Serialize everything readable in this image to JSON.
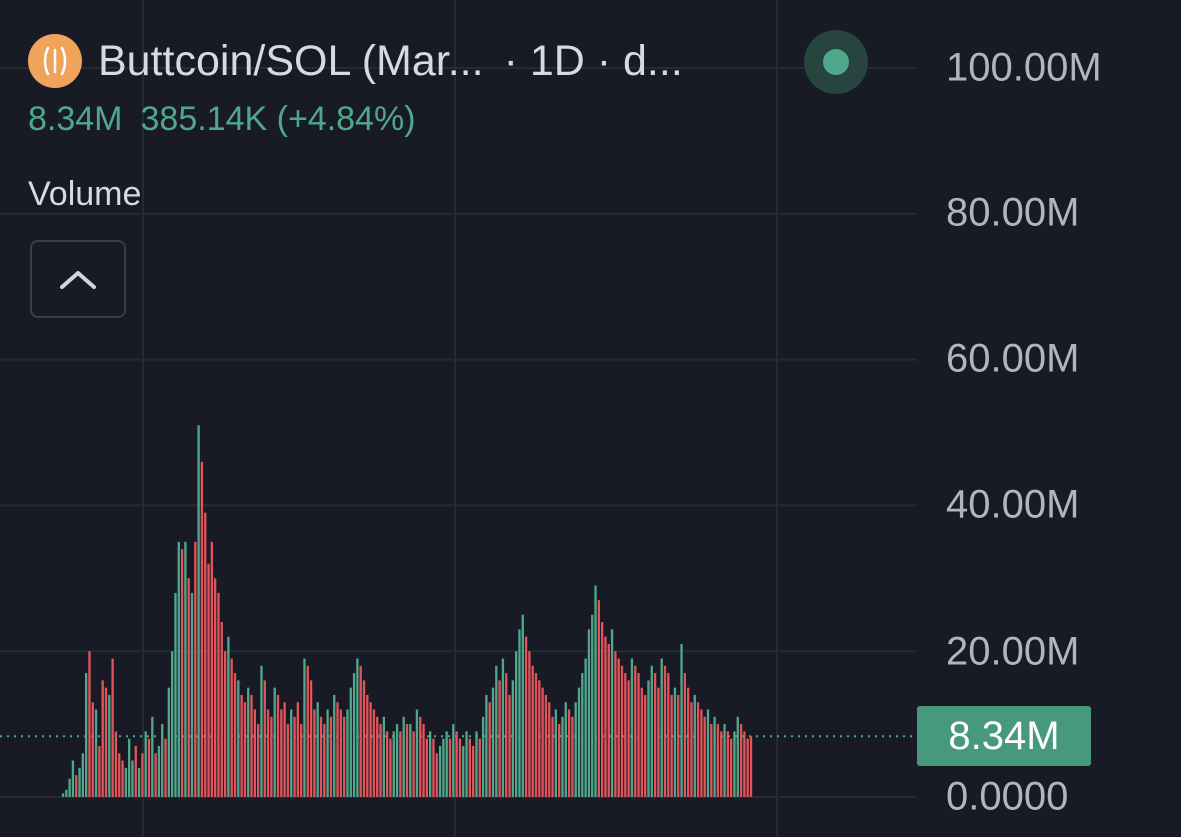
{
  "header": {
    "pair": "Buttcoin/SOL (Mar...",
    "interval": "· 1D · d...",
    "logo_icon": "buttcoin-logo-icon",
    "status_color": "#4fa88b",
    "volume_value": "8.34M",
    "change_value": "385.14K (+4.84%)",
    "indicator_label": "Volume"
  },
  "axis": {
    "labels": [
      "100.00M",
      "80.00M",
      "60.00M",
      "40.00M",
      "20.00M",
      "0.0000"
    ],
    "current_badge": "8.34M"
  },
  "colors": {
    "up": "#4fa88b",
    "down": "#e2545a",
    "grid": "#272a35",
    "badge": "#46997d"
  },
  "chart_data": {
    "type": "bar",
    "title": "Volume",
    "ylim": [
      0,
      100000000
    ],
    "current_value": 8340000,
    "grid": true,
    "bars": [
      [
        0.5,
        1
      ],
      [
        1,
        1
      ],
      [
        2.5,
        1
      ],
      [
        5,
        1
      ],
      [
        3,
        0
      ],
      [
        4,
        1
      ],
      [
        6,
        1
      ],
      [
        17,
        1
      ],
      [
        20,
        0
      ],
      [
        13,
        0
      ],
      [
        12,
        1
      ],
      [
        7,
        0
      ],
      [
        16,
        0
      ],
      [
        15,
        0
      ],
      [
        14,
        1
      ],
      [
        19,
        0
      ],
      [
        9,
        0
      ],
      [
        6,
        0
      ],
      [
        5,
        0
      ],
      [
        4,
        1
      ],
      [
        8,
        1
      ],
      [
        5,
        1
      ],
      [
        7,
        0
      ],
      [
        4,
        1
      ],
      [
        6,
        0
      ],
      [
        9,
        1
      ],
      [
        8,
        0
      ],
      [
        11,
        1
      ],
      [
        6,
        0
      ],
      [
        7,
        1
      ],
      [
        10,
        1
      ],
      [
        8,
        0
      ],
      [
        15,
        1
      ],
      [
        20,
        1
      ],
      [
        28,
        1
      ],
      [
        35,
        1
      ],
      [
        34,
        0
      ],
      [
        35,
        1
      ],
      [
        30,
        0
      ],
      [
        28,
        1
      ],
      [
        35,
        0
      ],
      [
        51,
        1
      ],
      [
        46,
        0
      ],
      [
        39,
        0
      ],
      [
        32,
        0
      ],
      [
        35,
        0
      ],
      [
        30,
        0
      ],
      [
        28,
        0
      ],
      [
        24,
        0
      ],
      [
        20,
        0
      ],
      [
        22,
        1
      ],
      [
        19,
        0
      ],
      [
        17,
        0
      ],
      [
        16,
        1
      ],
      [
        14,
        0
      ],
      [
        13,
        0
      ],
      [
        15,
        1
      ],
      [
        14,
        0
      ],
      [
        12,
        0
      ],
      [
        10,
        0
      ],
      [
        18,
        1
      ],
      [
        16,
        0
      ],
      [
        12,
        0
      ],
      [
        11,
        0
      ],
      [
        15,
        1
      ],
      [
        14,
        0
      ],
      [
        12,
        0
      ],
      [
        13,
        0
      ],
      [
        10,
        0
      ],
      [
        12,
        1
      ],
      [
        11,
        0
      ],
      [
        13,
        0
      ],
      [
        10,
        0
      ],
      [
        19,
        1
      ],
      [
        18,
        0
      ],
      [
        16,
        0
      ],
      [
        12,
        0
      ],
      [
        13,
        1
      ],
      [
        11,
        0
      ],
      [
        10,
        0
      ],
      [
        12,
        1
      ],
      [
        11,
        0
      ],
      [
        14,
        1
      ],
      [
        13,
        0
      ],
      [
        12,
        0
      ],
      [
        11,
        0
      ],
      [
        12,
        1
      ],
      [
        15,
        1
      ],
      [
        17,
        1
      ],
      [
        19,
        1
      ],
      [
        18,
        0
      ],
      [
        16,
        0
      ],
      [
        14,
        0
      ],
      [
        13,
        0
      ],
      [
        12,
        0
      ],
      [
        11,
        0
      ],
      [
        10,
        0
      ],
      [
        11,
        1
      ],
      [
        9,
        0
      ],
      [
        8,
        0
      ],
      [
        9,
        1
      ],
      [
        10,
        1
      ],
      [
        9,
        0
      ],
      [
        11,
        1
      ],
      [
        10,
        0
      ],
      [
        10,
        1
      ],
      [
        9,
        0
      ],
      [
        12,
        1
      ],
      [
        11,
        0
      ],
      [
        10,
        0
      ],
      [
        8,
        0
      ],
      [
        9,
        1
      ],
      [
        8,
        0
      ],
      [
        6,
        0
      ],
      [
        7,
        1
      ],
      [
        8,
        1
      ],
      [
        9,
        1
      ],
      [
        8,
        0
      ],
      [
        10,
        1
      ],
      [
        9,
        0
      ],
      [
        8,
        0
      ],
      [
        7,
        1
      ],
      [
        9,
        1
      ],
      [
        8,
        0
      ],
      [
        7,
        0
      ],
      [
        9,
        1
      ],
      [
        8,
        0
      ],
      [
        11,
        1
      ],
      [
        14,
        1
      ],
      [
        13,
        0
      ],
      [
        15,
        1
      ],
      [
        18,
        1
      ],
      [
        16,
        0
      ],
      [
        19,
        1
      ],
      [
        17,
        0
      ],
      [
        14,
        0
      ],
      [
        16,
        1
      ],
      [
        20,
        1
      ],
      [
        23,
        1
      ],
      [
        25,
        1
      ],
      [
        22,
        0
      ],
      [
        20,
        0
      ],
      [
        18,
        0
      ],
      [
        17,
        0
      ],
      [
        16,
        0
      ],
      [
        15,
        0
      ],
      [
        14,
        0
      ],
      [
        13,
        0
      ],
      [
        11,
        0
      ],
      [
        12,
        1
      ],
      [
        10,
        0
      ],
      [
        11,
        1
      ],
      [
        13,
        1
      ],
      [
        12,
        0
      ],
      [
        11,
        0
      ],
      [
        13,
        1
      ],
      [
        15,
        1
      ],
      [
        17,
        1
      ],
      [
        19,
        1
      ],
      [
        23,
        1
      ],
      [
        25,
        1
      ],
      [
        29,
        1
      ],
      [
        27,
        0
      ],
      [
        24,
        0
      ],
      [
        22,
        0
      ],
      [
        21,
        0
      ],
      [
        23,
        1
      ],
      [
        20,
        0
      ],
      [
        19,
        0
      ],
      [
        18,
        0
      ],
      [
        17,
        0
      ],
      [
        16,
        0
      ],
      [
        19,
        1
      ],
      [
        18,
        0
      ],
      [
        17,
        0
      ],
      [
        15,
        0
      ],
      [
        14,
        0
      ],
      [
        16,
        1
      ],
      [
        18,
        1
      ],
      [
        17,
        0
      ],
      [
        15,
        0
      ],
      [
        19,
        1
      ],
      [
        18,
        0
      ],
      [
        17,
        0
      ],
      [
        14,
        0
      ],
      [
        15,
        1
      ],
      [
        14,
        0
      ],
      [
        21,
        1
      ],
      [
        17,
        0
      ],
      [
        15,
        0
      ],
      [
        13,
        0
      ],
      [
        14,
        1
      ],
      [
        13,
        0
      ],
      [
        12,
        0
      ],
      [
        11,
        0
      ],
      [
        12,
        1
      ],
      [
        10,
        0
      ],
      [
        11,
        1
      ],
      [
        10,
        0
      ],
      [
        9,
        0
      ],
      [
        10,
        1
      ],
      [
        9,
        0
      ],
      [
        8,
        0
      ],
      [
        9,
        1
      ],
      [
        11,
        1
      ],
      [
        10,
        0
      ],
      [
        9,
        0
      ],
      [
        8,
        0
      ],
      [
        8.34,
        0
      ]
    ]
  }
}
